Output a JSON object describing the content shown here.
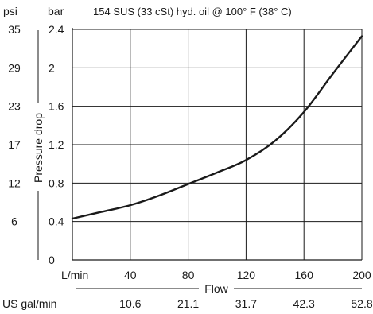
{
  "chart_data": {
    "type": "line",
    "title": "154 SUS (33 cSt) hyd. oil @ 100° F (38° C)",
    "xlabel": "Flow",
    "ylabel": "Pressure drop",
    "x_unit_primary": "L/min",
    "x_unit_secondary": "US gal/min",
    "y_unit_primary": "bar",
    "y_unit_secondary": "psi",
    "xlim": [
      0,
      200
    ],
    "ylim": [
      0,
      2.4
    ],
    "grid": true,
    "x_ticks": [
      {
        "value": 40,
        "label": "40",
        "secondary_label": "10.6"
      },
      {
        "value": 80,
        "label": "80",
        "secondary_label": "21.1"
      },
      {
        "value": 120,
        "label": "120",
        "secondary_label": "31.7"
      },
      {
        "value": 160,
        "label": "160",
        "secondary_label": "42.3"
      },
      {
        "value": 200,
        "label": "200",
        "secondary_label": "52.8"
      }
    ],
    "y_ticks": [
      {
        "value": 0,
        "label": "0",
        "secondary_label": ""
      },
      {
        "value": 0.4,
        "label": "0.4",
        "secondary_label": "6"
      },
      {
        "value": 0.8,
        "label": "0.8",
        "secondary_label": "12"
      },
      {
        "value": 1.2,
        "label": "1.2",
        "secondary_label": "17"
      },
      {
        "value": 1.6,
        "label": "1.6",
        "secondary_label": "23"
      },
      {
        "value": 2.0,
        "label": "2",
        "secondary_label": "29"
      },
      {
        "value": 2.4,
        "label": "2.4",
        "secondary_label": "35"
      }
    ],
    "series": [
      {
        "x": [
          0,
          20,
          40,
          60,
          80,
          100,
          120,
          140,
          160,
          180,
          200
        ],
        "y": [
          0.43,
          0.5,
          0.57,
          0.67,
          0.79,
          0.91,
          1.04,
          1.24,
          1.54,
          1.94,
          2.33
        ]
      }
    ]
  }
}
